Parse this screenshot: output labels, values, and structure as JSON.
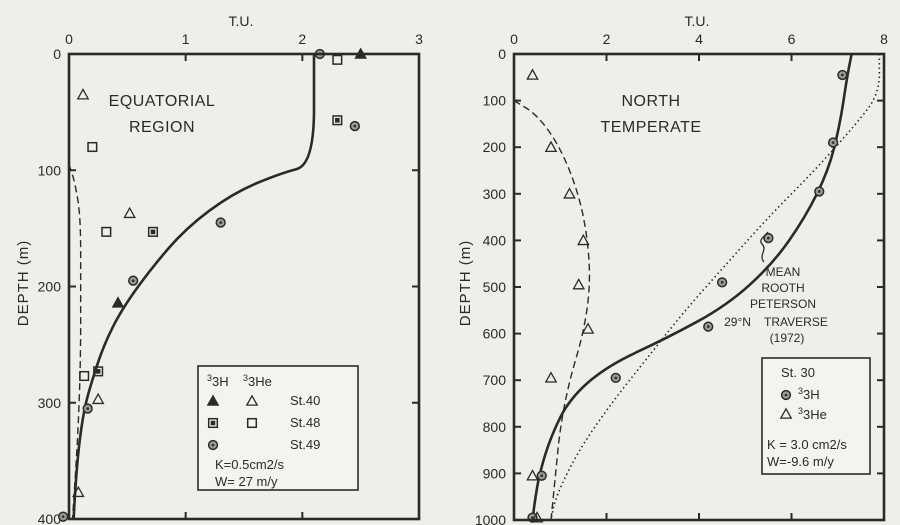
{
  "chart_data": [
    {
      "type": "scatter",
      "panel": "left",
      "title": "EQUATORIAL REGION",
      "title_lines": [
        "EQUATORIAL",
        "REGION"
      ],
      "xlabel": "T.U.",
      "ylabel": "DEPTH (m)",
      "xlim": [
        0,
        3
      ],
      "ylim": [
        400,
        0
      ],
      "x_ticks": [
        "0",
        "1",
        "2",
        "3"
      ],
      "y_ticks": [
        "0",
        "100",
        "200",
        "300",
        "400"
      ],
      "series": [
        {
          "name": "St.40",
          "isotope": "3H",
          "marker": "filled-triangle",
          "points": [
            [
              2.5,
              0
            ],
            [
              0.42,
              214
            ]
          ]
        },
        {
          "name": "St.40",
          "isotope": "3He",
          "marker": "open-triangle",
          "points": [
            [
              0.12,
              35
            ],
            [
              0.52,
              137
            ],
            [
              0.25,
              297
            ],
            [
              0.08,
              377
            ]
          ]
        },
        {
          "name": "St.48",
          "isotope": "3H",
          "marker": "filled-square",
          "points": [
            [
              2.3,
              57
            ],
            [
              0.72,
              153
            ],
            [
              0.25,
              273
            ]
          ]
        },
        {
          "name": "St.48",
          "isotope": "3He",
          "marker": "open-square",
          "points": [
            [
              2.3,
              5
            ],
            [
              0.2,
              80
            ],
            [
              0.32,
              153
            ],
            [
              0.13,
              277
            ]
          ]
        },
        {
          "name": "St.49",
          "isotope": "3H",
          "marker": "dotted-circle",
          "points": [
            [
              2.15,
              0
            ],
            [
              2.45,
              62
            ],
            [
              1.3,
              145
            ],
            [
              0.55,
              195
            ],
            [
              0.16,
              305
            ],
            [
              -0.05,
              398
            ]
          ]
        }
      ],
      "curves": [
        {
          "style": "solid",
          "points": [
            [
              2.1,
              0
            ],
            [
              2.1,
              95
            ],
            [
              1.8,
              103
            ],
            [
              1.4,
              120
            ],
            [
              1.0,
              150
            ],
            [
              0.7,
              185
            ],
            [
              0.45,
              220
            ],
            [
              0.3,
              250
            ],
            [
              0.2,
              280
            ],
            [
              0.13,
              305
            ],
            [
              0.08,
              340
            ],
            [
              0.05,
              380
            ],
            [
              0.04,
              400
            ]
          ]
        },
        {
          "style": "dashed",
          "points": [
            [
              0,
              95
            ],
            [
              0.05,
              110
            ],
            [
              0.1,
              140
            ],
            [
              0.1,
              200
            ],
            [
              0.1,
              260
            ],
            [
              0.08,
              320
            ],
            [
              0.05,
              370
            ],
            [
              0.03,
              400
            ]
          ]
        }
      ],
      "legend": {
        "position": "bottom-right",
        "headers": [
          "3H",
          "3He"
        ],
        "rows": [
          "St.40",
          "St.48",
          "St.49"
        ],
        "notes": [
          "K=0.5cm2/s",
          "W= 27 m/y"
        ]
      }
    },
    {
      "type": "scatter",
      "panel": "right",
      "title": "NORTH TEMPERATE",
      "title_lines": [
        "NORTH",
        "TEMPERATE"
      ],
      "xlabel": "T.U.",
      "ylabel": "DEPTH (m)",
      "xlim": [
        0,
        8
      ],
      "ylim": [
        1000,
        0
      ],
      "x_ticks": [
        "0",
        "2",
        "4",
        "6",
        "8"
      ],
      "y_ticks": [
        "0",
        "100",
        "200",
        "300",
        "400",
        "500",
        "600",
        "700",
        "800",
        "900",
        "1000"
      ],
      "series": [
        {
          "name": "St. 30",
          "isotope": "3H",
          "marker": "dotted-circle",
          "points": [
            [
              7.1,
              45
            ],
            [
              6.9,
              190
            ],
            [
              6.6,
              295
            ],
            [
              5.5,
              395
            ],
            [
              4.5,
              490
            ],
            [
              4.2,
              585
            ],
            [
              2.2,
              695
            ],
            [
              0.6,
              905
            ],
            [
              0.4,
              995
            ]
          ]
        },
        {
          "name": "St. 30",
          "isotope": "3He",
          "marker": "open-triangle",
          "points": [
            [
              0.4,
              45
            ],
            [
              0.8,
              200
            ],
            [
              1.2,
              300
            ],
            [
              1.5,
              400
            ],
            [
              1.4,
              495
            ],
            [
              1.6,
              590
            ],
            [
              0.8,
              695
            ],
            [
              0.4,
              905
            ],
            [
              0.5,
              995
            ]
          ]
        }
      ],
      "curves": [
        {
          "name": "solid-model",
          "style": "solid",
          "points": [
            [
              7.3,
              0
            ],
            [
              7.2,
              50
            ],
            [
              7.05,
              150
            ],
            [
              6.8,
              250
            ],
            [
              6.3,
              350
            ],
            [
              5.6,
              450
            ],
            [
              4.6,
              540
            ],
            [
              3.3,
              610
            ],
            [
              2.0,
              670
            ],
            [
              1.2,
              740
            ],
            [
              0.8,
              820
            ],
            [
              0.55,
              900
            ],
            [
              0.45,
              960
            ],
            [
              0.4,
              1000
            ]
          ]
        },
        {
          "name": "dashed-model",
          "style": "dashed",
          "points": [
            [
              0,
              100
            ],
            [
              0.5,
              130
            ],
            [
              1.0,
              200
            ],
            [
              1.4,
              300
            ],
            [
              1.6,
              400
            ],
            [
              1.65,
              500
            ],
            [
              1.5,
              600
            ],
            [
              1.2,
              700
            ],
            [
              1.0,
              800
            ],
            [
              0.9,
              900
            ],
            [
              0.8,
              1000
            ]
          ]
        },
        {
          "name": "MEAN ROOTH PETERSON 29°N TRAVERSE (1972)",
          "style": "dotted",
          "points": [
            [
              7.9,
              0
            ],
            [
              7.9,
              85
            ],
            [
              7.4,
              150
            ],
            [
              6.5,
              250
            ],
            [
              5.5,
              350
            ],
            [
              4.6,
              450
            ],
            [
              3.7,
              550
            ],
            [
              2.9,
              650
            ],
            [
              2.1,
              750
            ],
            [
              1.4,
              850
            ],
            [
              0.9,
              950
            ],
            [
              0.8,
              1000
            ]
          ]
        }
      ],
      "annotation_lines": [
        "MEAN",
        "ROOTH",
        "PETERSON",
        "29°N    TRAVERSE",
        "(1972)"
      ],
      "legend": {
        "position": "bottom-right",
        "title": "St. 30",
        "labels": [
          "3H",
          "3He"
        ],
        "notes": [
          "K = 3.0 cm2/s",
          "W=-9.6 m/y"
        ]
      }
    }
  ]
}
